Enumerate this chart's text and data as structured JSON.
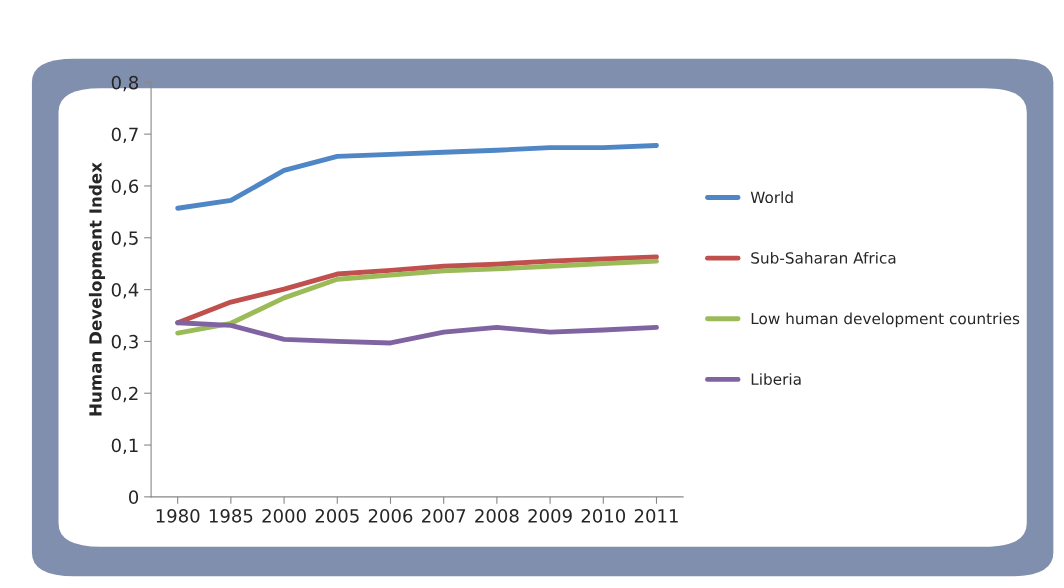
{
  "chart_data": {
    "type": "line",
    "ylabel": "Human Development Index",
    "categories": [
      "1980",
      "1985",
      "2000",
      "2005",
      "2006",
      "2007",
      "2008",
      "2009",
      "2010",
      "2011"
    ],
    "series": [
      {
        "name": "World",
        "color": "#4f86c6",
        "values": [
          0.557,
          0.572,
          0.63,
          0.657,
          0.661,
          0.665,
          0.669,
          0.674,
          0.674,
          0.678
        ]
      },
      {
        "name": "Sub-Saharan Africa",
        "color": "#c0504d",
        "values": [
          0.336,
          0.376,
          0.401,
          0.43,
          0.437,
          0.445,
          0.449,
          0.455,
          0.459,
          0.463
        ]
      },
      {
        "name": "Low human development countries",
        "color": "#9bbb59",
        "values": [
          0.316,
          0.335,
          0.384,
          0.42,
          0.428,
          0.436,
          0.44,
          0.445,
          0.45,
          0.455
        ]
      },
      {
        "name": "Liberia",
        "color": "#8064a2",
        "values": [
          0.336,
          0.331,
          0.304,
          0.3,
          0.297,
          0.318,
          0.327,
          0.318,
          0.322,
          0.327
        ]
      }
    ],
    "ylim": [
      0,
      0.8
    ],
    "yticks": [
      0,
      {
        "value": 0.1,
        "label": "0,1"
      },
      {
        "value": 0.2,
        "label": "0,2"
      },
      {
        "value": 0.3,
        "label": "0,3"
      },
      {
        "value": 0.4,
        "label": "0,4"
      },
      {
        "value": 0.5,
        "label": "0,5"
      },
      {
        "value": 0.6,
        "label": "0,6"
      },
      {
        "value": 0.7,
        "label": "0,7"
      },
      {
        "value": 0.8,
        "label": "0,8"
      }
    ],
    "grid": false,
    "legend": "right",
    "marker": "none",
    "line_style": "solid"
  }
}
